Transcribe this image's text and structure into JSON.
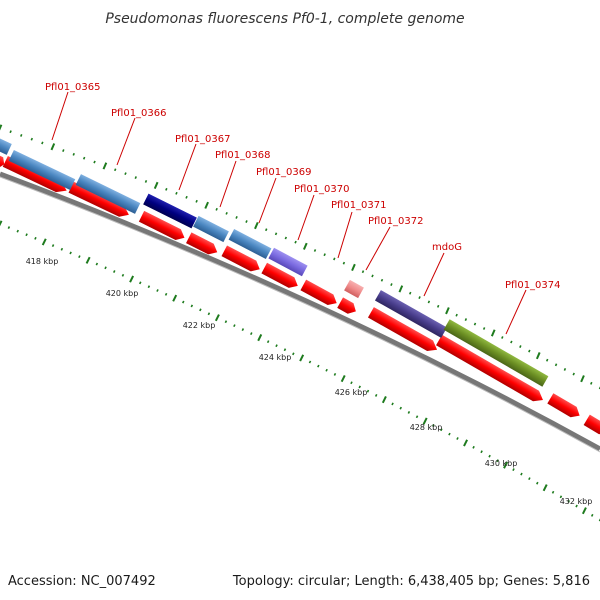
{
  "map": {
    "title": "Pseudomonas fluorescens Pf0-1, complete genome",
    "accession": "Accession: NC_007492",
    "summary": "Topology: circular; Length: 6,438,405 bp; Genes: 5,816"
  },
  "genes": [
    {
      "label": "Pfl01_0365"
    },
    {
      "label": "Pfl01_0366"
    },
    {
      "label": "Pfl01_0367"
    },
    {
      "label": "Pfl01_0368"
    },
    {
      "label": "Pfl01_0369"
    },
    {
      "label": "Pfl01_0370"
    },
    {
      "label": "Pfl01_0371"
    },
    {
      "label": "Pfl01_0372"
    },
    {
      "label": "mdoG"
    },
    {
      "label": "Pfl01_0374"
    }
  ],
  "ticks": [
    "418 kbp",
    "420 kbp",
    "422 kbp",
    "424 kbp",
    "426 kbp",
    "428 kbp",
    "430 kbp",
    "432 kbp"
  ],
  "colors": {
    "label": "#cc0000",
    "cds_feature": "#ff0000",
    "gene_blue": "#4a86c0",
    "gene_navy": "#000080",
    "gene_purple": "#7a6ae0",
    "gene_pink": "#f08a8a",
    "gene_indigo": "#483d8b",
    "gene_olive": "#6b8e23",
    "tick": "#1e7b1e",
    "backbone": "#777777"
  }
}
